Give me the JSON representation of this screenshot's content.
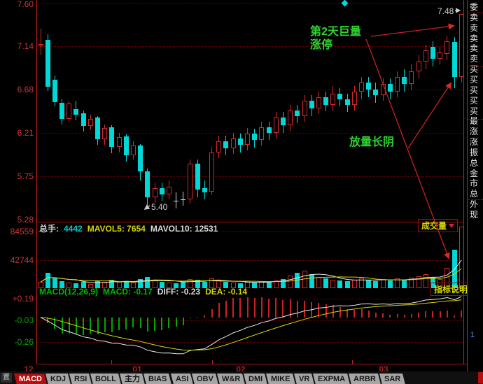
{
  "colors": {
    "up_red": "#d42a2a",
    "down_cyan": "#00d8d8",
    "doji_white": "#d8d8d8",
    "grid_red": "#700000",
    "axis_red": "#c41e1e",
    "price_label_red": "#cf3535",
    "neg_label_green": "#00a800",
    "annotation_green": "#2fd32f",
    "yellow": "#d8d800",
    "white": "#e0e0e0",
    "value_cyan": "#00cccc",
    "tab_active_bg": "#b50e0e"
  },
  "price_panel": {
    "ticks": [
      "7.60",
      "7.14",
      "6.68",
      "6.21",
      "5.75",
      "5.28"
    ],
    "low_label": "5.40",
    "high_label": "7.48"
  },
  "volume_panel": {
    "ticks": [
      "84559",
      "42744"
    ],
    "header": [
      {
        "text": "总手:",
        "color": "#d0d0d0"
      },
      {
        "text": "4442",
        "color": "#00cccc"
      },
      {
        "text": "MAVOL5: 7654",
        "color": "#d6d600"
      },
      {
        "text": "MAVOL10: 12531",
        "color": "#dadada"
      }
    ],
    "badge": "成交量"
  },
  "macd_panel": {
    "ticks": [
      "+0.19",
      "-0.03",
      "-0.26"
    ],
    "tick_colors": [
      "#cf3535",
      "#00a800",
      "#00a800"
    ],
    "header": [
      {
        "text": "MACD(12,26,9)",
        "color": "#00b800"
      },
      {
        "text": "MACD: -0.17",
        "color": "#00b800"
      },
      {
        "text": "DIFF: -0.23",
        "color": "#dcdcdc"
      },
      {
        "text": "DEA: -0.14",
        "color": "#d6d600"
      }
    ],
    "badge": "指标说明"
  },
  "x_axis": {
    "labels": [
      "12",
      "01",
      "02",
      "03"
    ]
  },
  "annotations": {
    "a1_line1": "第2天巨量",
    "a1_line2": "涨停",
    "a2": "放量长阴"
  },
  "sidebar": {
    "labels": [
      "委",
      "卖",
      "卖",
      "卖",
      "卖",
      "卖",
      "买",
      "买",
      "买",
      "买",
      "买",
      "最",
      "涨",
      "涨",
      "振",
      "总",
      "金",
      "市",
      "总",
      "外",
      "现"
    ],
    "extra_value": "1"
  },
  "tab_bar": {
    "corner_glyph": "置",
    "active": "MACD",
    "tabs": [
      "MACD",
      "KDJ",
      "RSI",
      "BOLL",
      "主力",
      "BIAS",
      "ASI",
      "OBV",
      "W&R",
      "DMI",
      "MIKE",
      "VR",
      "EXPMA",
      "ARBR",
      "SAR"
    ]
  },
  "chart_data": {
    "type": "candlestick",
    "title": "",
    "panels": [
      "price",
      "volume",
      "macd"
    ],
    "x_month_labels": [
      "12",
      "01",
      "02",
      "03"
    ],
    "price_axis_ticks": [
      7.6,
      7.14,
      6.68,
      6.21,
      5.75,
      5.28
    ],
    "volume_axis_ticks": [
      84559,
      42744
    ],
    "macd_axis_ticks": [
      0.19,
      -0.03,
      -0.26
    ],
    "low_point": 5.4,
    "high_point": 7.48,
    "ohlc_order": "open,high,low,close",
    "candles": [
      [
        7.14,
        7.32,
        7.04,
        7.16
      ],
      [
        7.2,
        7.26,
        6.66,
        6.7
      ],
      [
        6.78,
        6.82,
        6.49,
        6.54
      ],
      [
        6.53,
        6.57,
        6.3,
        6.36
      ],
      [
        6.36,
        6.55,
        6.33,
        6.52
      ],
      [
        6.46,
        6.55,
        6.34,
        6.4
      ],
      [
        6.42,
        6.45,
        6.22,
        6.28
      ],
      [
        6.28,
        6.4,
        6.24,
        6.36
      ],
      [
        6.37,
        6.39,
        6.08,
        6.14
      ],
      [
        6.14,
        6.3,
        6.08,
        6.26
      ],
      [
        6.27,
        6.29,
        5.99,
        6.06
      ],
      [
        6.06,
        6.21,
        6.0,
        6.16
      ],
      [
        6.17,
        6.19,
        5.9,
        5.97
      ],
      [
        5.97,
        6.12,
        5.92,
        6.07
      ],
      [
        6.07,
        6.09,
        5.7,
        5.8
      ],
      [
        5.8,
        5.83,
        5.4,
        5.52
      ],
      [
        5.52,
        5.67,
        5.46,
        5.62
      ],
      [
        5.62,
        5.68,
        5.48,
        5.55
      ],
      [
        5.55,
        5.7,
        5.5,
        5.63
      ],
      [
        5.48,
        5.57,
        5.4,
        5.48
      ],
      [
        5.5,
        5.58,
        5.43,
        5.5
      ],
      [
        5.5,
        5.92,
        5.45,
        5.88
      ],
      [
        5.88,
        5.92,
        5.52,
        5.6
      ],
      [
        5.62,
        5.7,
        5.5,
        5.57
      ],
      [
        5.58,
        6.05,
        5.54,
        6.0
      ],
      [
        6.0,
        6.18,
        5.94,
        6.12
      ],
      [
        6.12,
        6.18,
        5.97,
        6.04
      ],
      [
        6.04,
        6.21,
        5.98,
        6.15
      ],
      [
        6.15,
        6.2,
        6.0,
        6.08
      ],
      [
        6.08,
        6.26,
        6.02,
        6.2
      ],
      [
        6.2,
        6.25,
        6.05,
        6.13
      ],
      [
        6.13,
        6.33,
        6.07,
        6.27
      ],
      [
        6.27,
        6.33,
        6.13,
        6.21
      ],
      [
        6.21,
        6.43,
        6.15,
        6.37
      ],
      [
        6.37,
        6.43,
        6.21,
        6.29
      ],
      [
        6.29,
        6.51,
        6.23,
        6.45
      ],
      [
        6.45,
        6.51,
        6.31,
        6.39
      ],
      [
        6.39,
        6.61,
        6.33,
        6.55
      ],
      [
        6.55,
        6.61,
        6.39,
        6.47
      ],
      [
        6.47,
        6.65,
        6.41,
        6.59
      ],
      [
        6.59,
        6.65,
        6.44,
        6.51
      ],
      [
        6.51,
        6.71,
        6.45,
        6.63
      ],
      [
        6.63,
        6.69,
        6.49,
        6.57
      ],
      [
        6.57,
        6.63,
        6.43,
        6.51
      ],
      [
        6.51,
        6.71,
        6.45,
        6.65
      ],
      [
        6.65,
        6.81,
        6.57,
        6.75
      ],
      [
        6.75,
        6.81,
        6.59,
        6.67
      ],
      [
        6.67,
        6.75,
        6.53,
        6.61
      ],
      [
        6.61,
        6.79,
        6.55,
        6.73
      ],
      [
        6.73,
        6.79,
        6.57,
        6.65
      ],
      [
        6.65,
        6.87,
        6.59,
        6.81
      ],
      [
        6.81,
        6.89,
        6.65,
        6.73
      ],
      [
        6.73,
        6.94,
        6.67,
        6.87
      ],
      [
        6.87,
        7.04,
        6.79,
        6.97
      ],
      [
        6.97,
        7.15,
        6.89,
        7.09
      ],
      [
        7.13,
        7.19,
        6.92,
        7.0
      ],
      [
        7.0,
        7.13,
        6.94,
        7.07
      ],
      [
        7.05,
        7.25,
        6.99,
        7.19
      ],
      [
        7.18,
        7.23,
        6.69,
        6.81
      ],
      [
        6.81,
        7.48,
        6.75,
        7.48
      ]
    ],
    "volumes": [
      9000,
      22000,
      15000,
      10000,
      8000,
      7000,
      9000,
      6500,
      11000,
      8000,
      12000,
      9000,
      10500,
      8500,
      13000,
      16000,
      12000,
      9500,
      8000,
      7000,
      9500,
      13000,
      12000,
      9000,
      14000,
      11000,
      9000,
      8000,
      7500,
      9000,
      8500,
      10000,
      9500,
      11500,
      13000,
      18000,
      22000,
      26000,
      20000,
      16000,
      14000,
      12500,
      11000,
      10000,
      12000,
      14500,
      12000,
      10500,
      13000,
      11000,
      14000,
      12000,
      15000,
      17000,
      20000,
      16000,
      13000,
      30000,
      56000,
      90000
    ],
    "derived_series": "MAVOL5, MAVOL10, DIFF, DEA and MACD histogram are computed from candles/volumes"
  }
}
